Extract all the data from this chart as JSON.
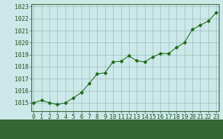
{
  "x": [
    0,
    1,
    2,
    3,
    4,
    5,
    6,
    7,
    8,
    9,
    10,
    11,
    12,
    13,
    14,
    15,
    16,
    17,
    18,
    19,
    20,
    21,
    22,
    23
  ],
  "y": [
    1015.0,
    1015.2,
    1015.0,
    1014.85,
    1015.0,
    1015.4,
    1015.85,
    1016.6,
    1017.4,
    1017.5,
    1018.4,
    1018.45,
    1018.9,
    1018.5,
    1018.4,
    1018.8,
    1019.1,
    1019.1,
    1019.6,
    1020.0,
    1021.1,
    1021.45,
    1021.8,
    1022.5
  ],
  "line_color": "#1a6b1a",
  "marker": "D",
  "marker_size": 2.5,
  "line_width": 0.8,
  "bg_plot": "#cce8e8",
  "bg_fig": "#cce8e8",
  "grid_color": "#99bbbb",
  "xlabel_fontsize": 7.5,
  "xtick_labels": [
    "0",
    "1",
    "2",
    "3",
    "4",
    "5",
    "6",
    "7",
    "8",
    "9",
    "10",
    "11",
    "12",
    "13",
    "14",
    "15",
    "16",
    "17",
    "18",
    "19",
    "20",
    "21",
    "22",
    "23"
  ],
  "ytick_min": 1015,
  "ytick_max": 1023,
  "ytick_step": 1,
  "ylim_min": 1014.3,
  "ylim_max": 1023.2,
  "xlim_min": -0.3,
  "xlim_max": 23.3,
  "tick_fontsize": 6.0,
  "spine_color": "#336633",
  "bottom_bar_color": "#336633",
  "bottom_bar_height": 0.12
}
